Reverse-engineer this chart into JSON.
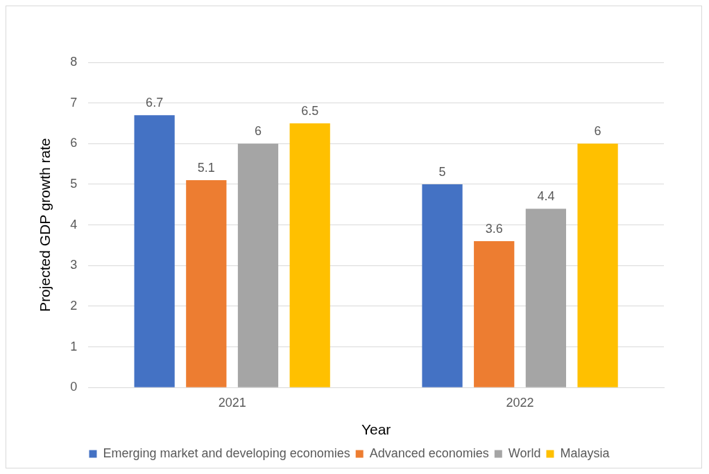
{
  "chart_data": {
    "type": "bar",
    "xlabel": "Year",
    "ylabel": "Projected GDP growth rate",
    "categories": [
      "2021",
      "2022"
    ],
    "series": [
      {
        "name": "Emerging market and developing economies",
        "color": "#4472c4",
        "values": [
          6.7,
          5
        ]
      },
      {
        "name": "Advanced economies",
        "color": "#ed7d31",
        "values": [
          5.1,
          3.6
        ]
      },
      {
        "name": "World",
        "color": "#a5a5a5",
        "values": [
          6,
          4.4
        ]
      },
      {
        "name": "Malaysia",
        "color": "#ffc000",
        "values": [
          6.5,
          6
        ]
      }
    ],
    "ylim": [
      0,
      8
    ],
    "yticks": [
      0,
      1,
      2,
      3,
      4,
      5,
      6,
      7,
      8
    ],
    "grid": "y",
    "legend": "bottom",
    "data_labels": true
  }
}
